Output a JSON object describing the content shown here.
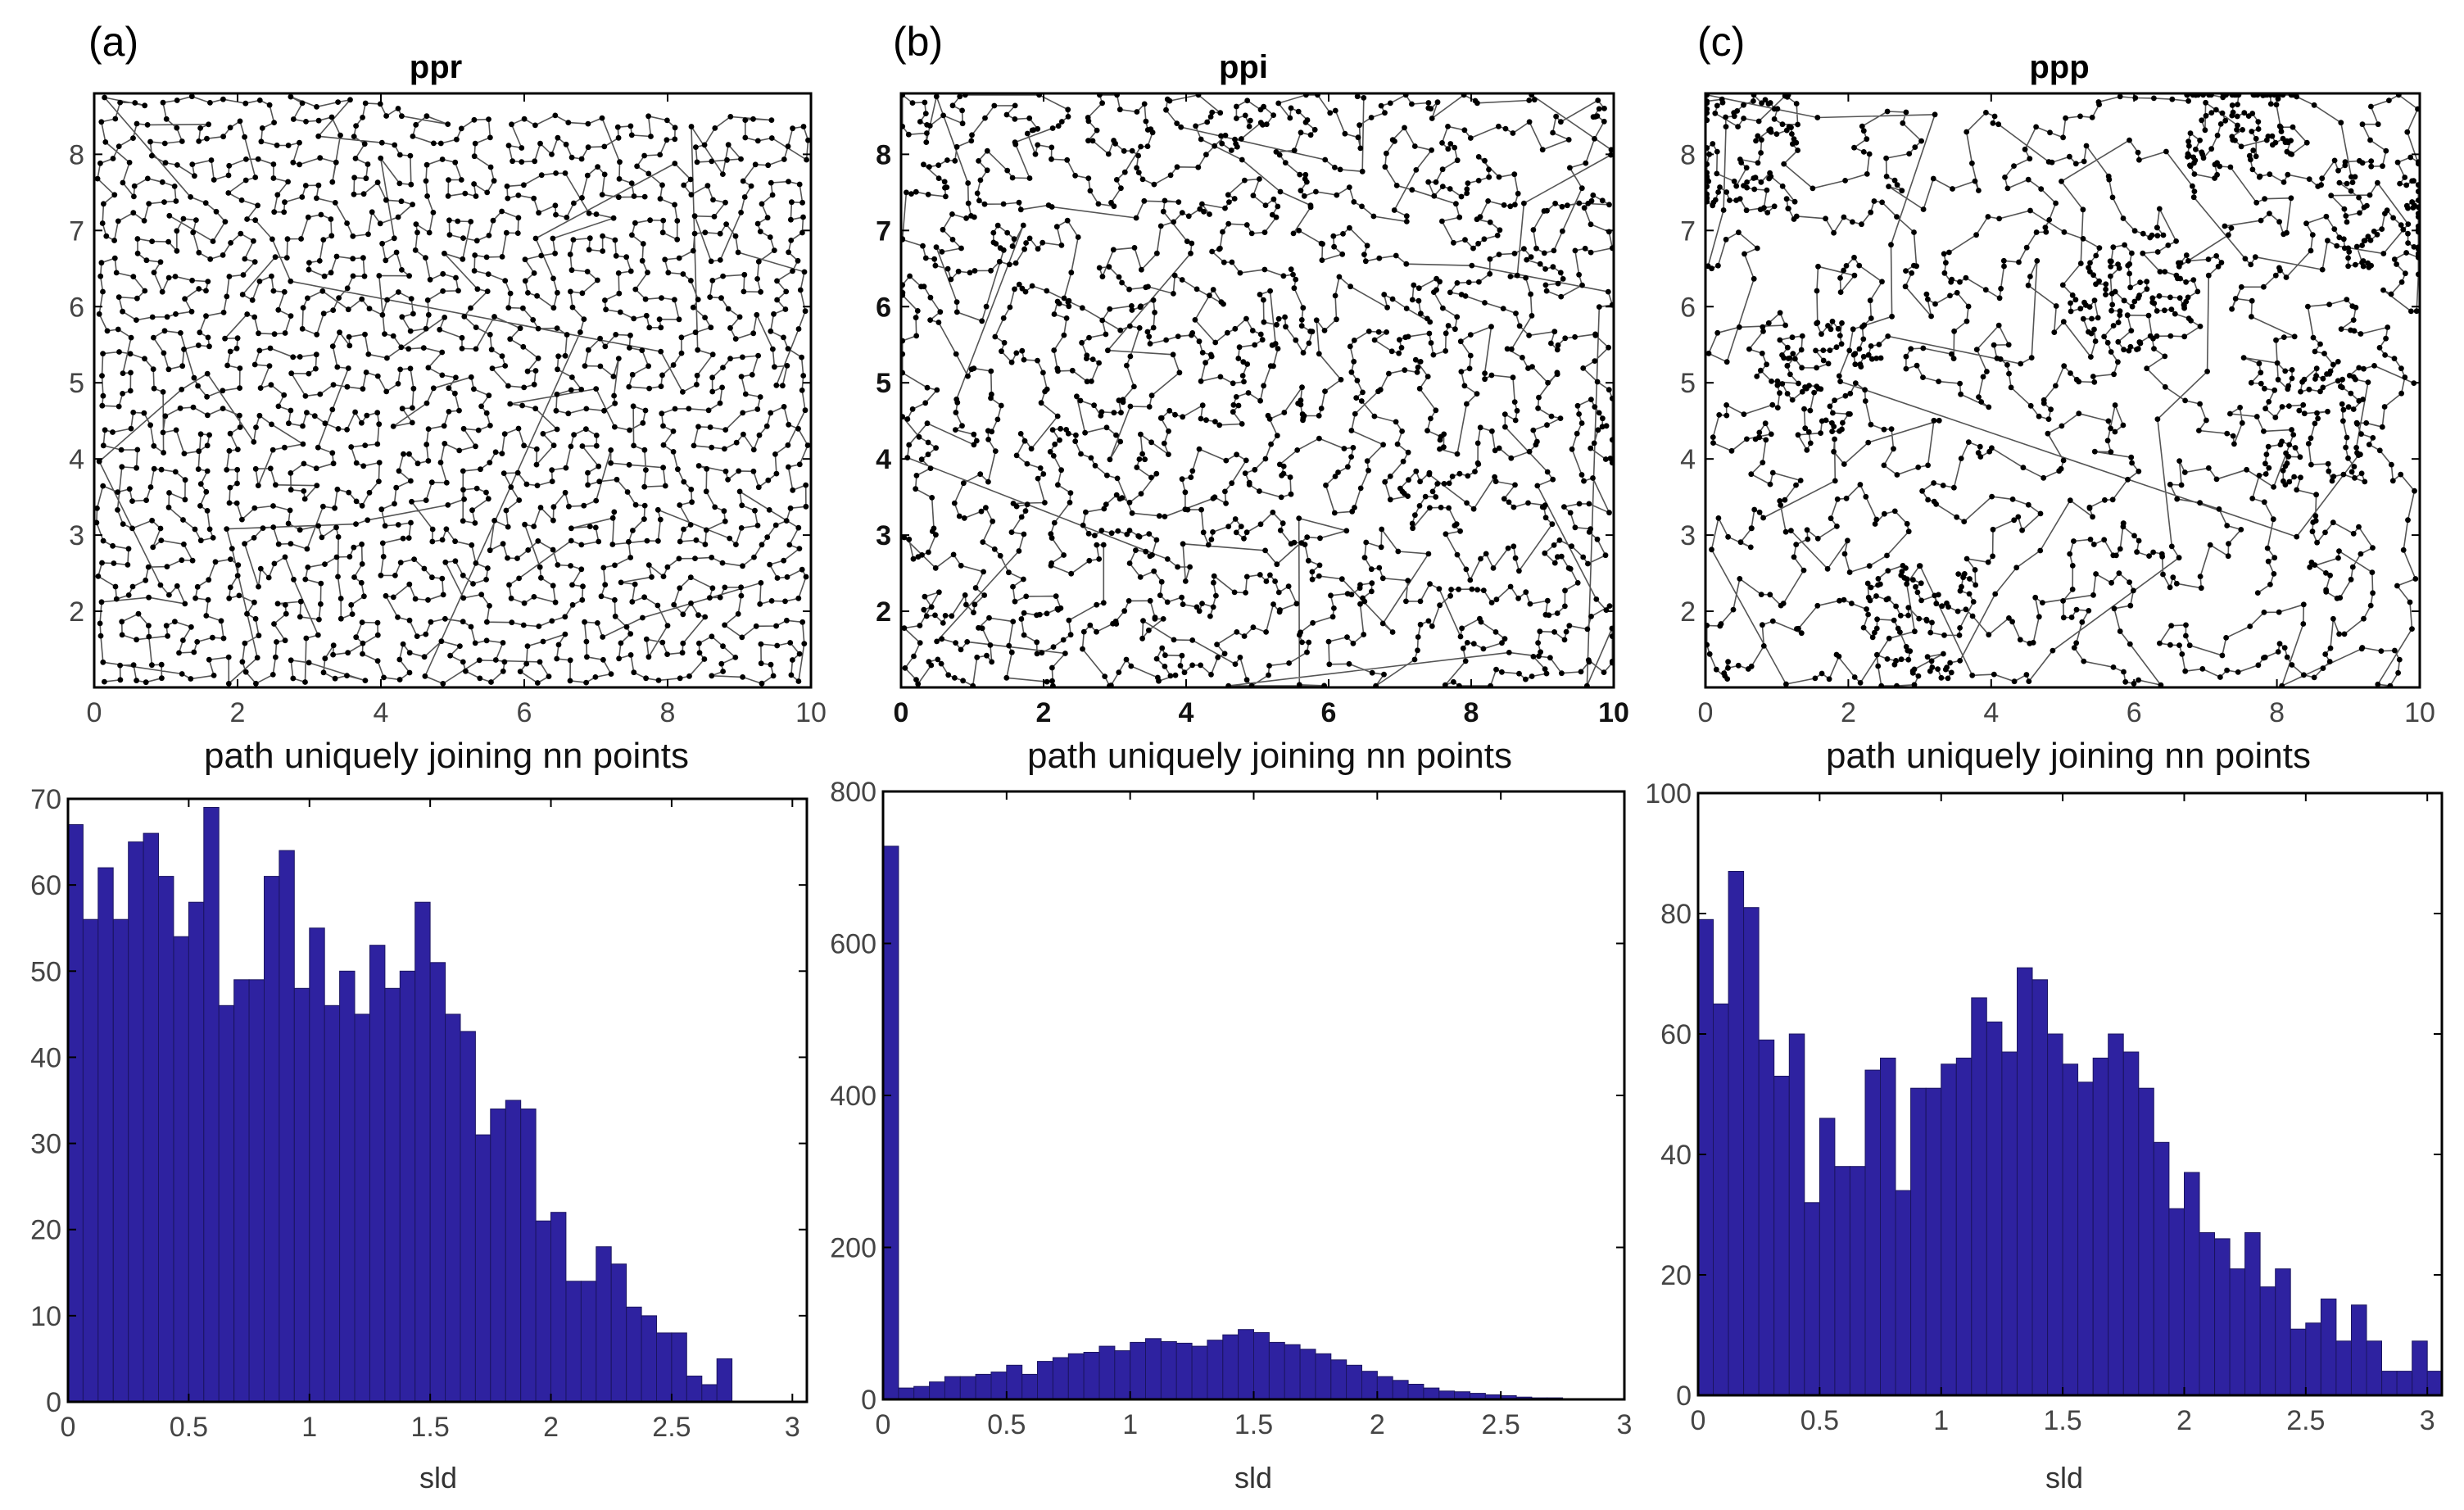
{
  "chart_data": [
    {
      "panel": "(a)",
      "type": "line",
      "title": "ppr",
      "description": "path uniquely joining nn points",
      "xlim": [
        0,
        10
      ],
      "ylim": [
        1,
        8.8
      ],
      "xticks": [
        "0",
        "2",
        "4",
        "6",
        "8",
        "10"
      ],
      "yticks": [
        "2",
        "3",
        "4",
        "5",
        "6",
        "7",
        "8"
      ],
      "points": 1400,
      "pattern": "regular"
    },
    {
      "panel": "(b)",
      "type": "line",
      "title": "ppi",
      "description": "path uniquely joining nn points",
      "xlim": [
        0,
        10
      ],
      "ylim": [
        1,
        8.8
      ],
      "xticks": [
        "0",
        "2",
        "4",
        "6",
        "8",
        "10"
      ],
      "yticks": [
        "2",
        "3",
        "4",
        "5",
        "6",
        "7",
        "8"
      ],
      "points": 1400,
      "pattern": "inhibited-clustered"
    },
    {
      "panel": "(c)",
      "type": "line",
      "title": "ppp",
      "description": "path uniquely joining nn points",
      "xlim": [
        0,
        10
      ],
      "ylim": [
        1,
        8.8
      ],
      "xticks": [
        "0",
        "2",
        "4",
        "6",
        "8",
        "10"
      ],
      "yticks": [
        "2",
        "3",
        "4",
        "5",
        "6",
        "7",
        "8"
      ],
      "points": 1400,
      "pattern": "poisson"
    },
    {
      "panel": "(a)",
      "type": "bar",
      "xlabel": "sld",
      "xlim": [
        0,
        3.06
      ],
      "ylim": [
        0,
        70
      ],
      "xticks": [
        "0",
        "0.5",
        "1",
        "1.5",
        "2",
        "2.5",
        "3"
      ],
      "yticks": [
        "0",
        "10",
        "20",
        "30",
        "40",
        "50",
        "60",
        "70"
      ],
      "bin_width": 0.0625,
      "values": [
        67,
        56,
        62,
        56,
        65,
        66,
        61,
        54,
        58,
        69,
        46,
        49,
        49,
        61,
        64,
        48,
        55,
        46,
        50,
        45,
        53,
        48,
        50,
        58,
        51,
        45,
        43,
        31,
        34,
        35,
        34,
        21,
        22,
        14,
        14,
        18,
        16,
        11,
        10,
        8,
        8,
        3,
        2,
        5
      ]
    },
    {
      "panel": "(b)",
      "type": "bar",
      "xlabel": "sld",
      "xlim": [
        0,
        3.0
      ],
      "ylim": [
        0,
        800
      ],
      "xticks": [
        "0",
        "0.5",
        "1",
        "1.5",
        "2",
        "2.5",
        "3"
      ],
      "yticks": [
        "0",
        "200",
        "400",
        "600",
        "800"
      ],
      "bin_width": 0.0625,
      "values": [
        728,
        15,
        17,
        23,
        30,
        30,
        33,
        36,
        45,
        33,
        50,
        55,
        60,
        62,
        70,
        64,
        75,
        80,
        76,
        74,
        70,
        78,
        85,
        92,
        88,
        75,
        72,
        66,
        60,
        52,
        45,
        37,
        30,
        25,
        20,
        15,
        11,
        10,
        8,
        6,
        5,
        3,
        2,
        2,
        1,
        1,
        1,
        1
      ]
    },
    {
      "panel": "(c)",
      "type": "bar",
      "xlabel": "sld",
      "xlim": [
        0,
        3.06
      ],
      "ylim": [
        0,
        100
      ],
      "xticks": [
        "0",
        "0.5",
        "1",
        "1.5",
        "2",
        "2.5",
        "3"
      ],
      "yticks": [
        "0",
        "20",
        "40",
        "60",
        "80",
        "100"
      ],
      "bin_width": 0.0625,
      "values": [
        79,
        65,
        87,
        81,
        59,
        53,
        60,
        32,
        46,
        38,
        38,
        54,
        56,
        34,
        51,
        51,
        55,
        56,
        66,
        62,
        57,
        71,
        69,
        60,
        55,
        52,
        56,
        60,
        57,
        51,
        42,
        31,
        37,
        27,
        26,
        21,
        27,
        18,
        21,
        11,
        12,
        16,
        9,
        15,
        9,
        4,
        4,
        9,
        4
      ]
    }
  ],
  "panel_labels": [
    "(a)",
    "(b)",
    "(c)"
  ],
  "titles": [
    "ppr",
    "ppi",
    "ppp"
  ],
  "captions": [
    "path uniquely joining nn points",
    "path uniquely joining nn points",
    "path uniquely joining nn points"
  ],
  "hist_xlabels": [
    "sld",
    "sld",
    "sld"
  ],
  "colors": {
    "bar_fill": "#2e22a0",
    "bar_edge": "#1b1560",
    "path_line": "#555555",
    "path_dot": "#000000"
  }
}
